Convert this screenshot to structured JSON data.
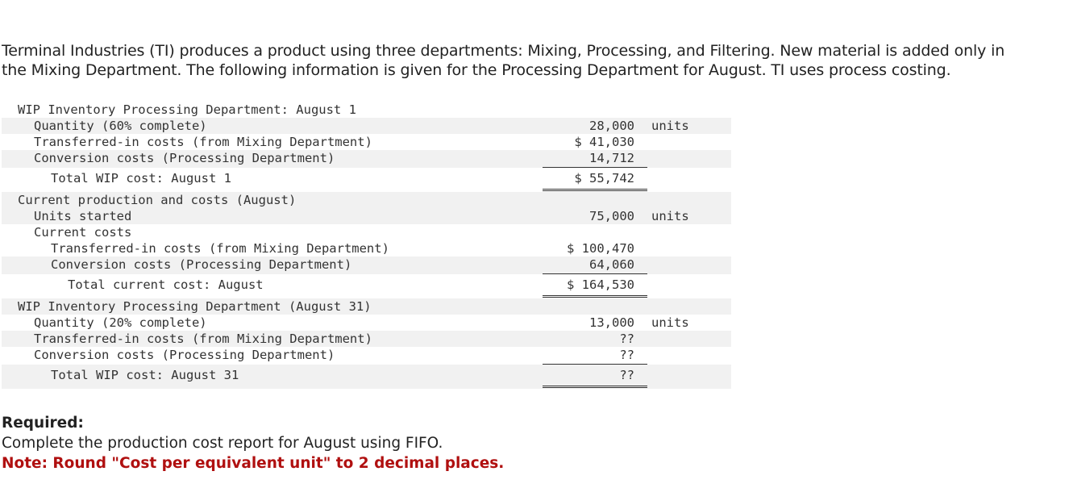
{
  "intro": {
    "line1": "Terminal Industries (TI) produces a product using three departments: Mixing, Processing, and Filtering. New material is added only in",
    "line2": "the Mixing Department. The following information is given for the Processing Department for August. TI uses process costing."
  },
  "table": {
    "rows": [
      {
        "label": "WIP Inventory Processing Department: August 1",
        "amount": "",
        "unit": ""
      },
      {
        "label": "Quantity (60% complete)",
        "amount": "28,000",
        "unit": "units"
      },
      {
        "label": "Transferred-in costs (from Mixing Department)",
        "amount": "$ 41,030",
        "unit": ""
      },
      {
        "label": "Conversion costs (Processing Department)",
        "amount": "14,712",
        "unit": ""
      },
      {
        "label": "Total WIP cost: August 1",
        "amount": "$ 55,742",
        "unit": ""
      },
      {
        "label": "Current production and costs (August)",
        "amount": "",
        "unit": ""
      },
      {
        "label": "Units started",
        "amount": "75,000",
        "unit": "units"
      },
      {
        "label": "Current costs",
        "amount": "",
        "unit": ""
      },
      {
        "label": "Transferred-in costs (from Mixing Department)",
        "amount": "$ 100,470",
        "unit": ""
      },
      {
        "label": "Conversion costs (Processing Department)",
        "amount": "64,060",
        "unit": ""
      },
      {
        "label": "Total current cost: August",
        "amount": "$ 164,530",
        "unit": ""
      },
      {
        "label": "WIP Inventory Processing Department (August 31)",
        "amount": "",
        "unit": ""
      },
      {
        "label": "Quantity (20% complete)",
        "amount": "13,000",
        "unit": "units"
      },
      {
        "label": "Transferred-in costs (from Mixing Department)",
        "amount": "??",
        "unit": ""
      },
      {
        "label": "Conversion costs (Processing Department)",
        "amount": "??",
        "unit": ""
      },
      {
        "label": "Total WIP cost: August 31",
        "amount": "??",
        "unit": ""
      }
    ]
  },
  "required": {
    "heading": "Required:",
    "text": "Complete the production cost report for August using FIFO.",
    "note": "Note: Round \"Cost per equivalent unit\" to 2 decimal places."
  },
  "colors": {
    "note": "#b01010",
    "shade": "#f1f1f1"
  }
}
